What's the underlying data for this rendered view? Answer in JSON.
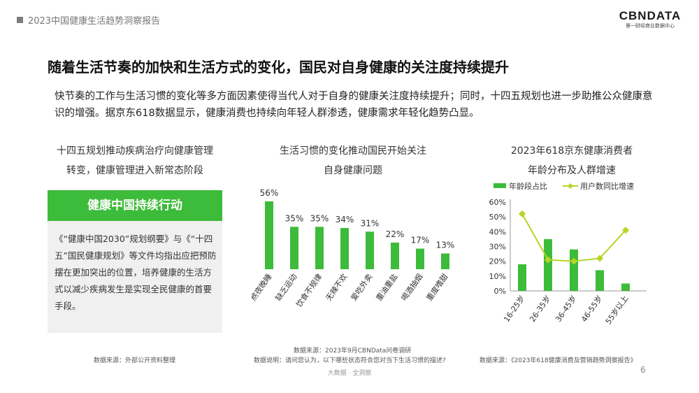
{
  "header": {
    "title": "2023中国健康生活趋势洞察报告"
  },
  "logo": {
    "main": "CBNDATA",
    "sub": "第一财经商业数据中心"
  },
  "headline": "随着生活节奏的加快和生活方式的变化，国民对自身健康的关注度持续提升",
  "intro": "快节奏的工作与生活习惯的变化等多方面因素使得当代人对于自身的健康关注度持续提升；同时，十四五规划也进一步助推公众健康意识的增强。据京东618数据显示，健康消费也持续向年轻人群渗透，健康需求年轻化趋势凸显。",
  "left_panel": {
    "title_line1": "十四五规划推动疾病治疗向健康管理",
    "title_line2": "转变，健康管理进入新常态阶段",
    "box_label": "健康中国持续行动",
    "paragraph": "《“健康中国2030”规划纲要》与《“十四五”国民健康规划》等文件均指出应把预防摆在更加突出的位置，培养健康的生活方式以减少疾病发生是实现全民健康的首要手段。",
    "source": "数据来源：外部公开资料整理"
  },
  "mid_panel": {
    "title_line1": "生活习惯的变化推动国民开始关注",
    "title_line2": "自身健康问题",
    "source": "数据来源：2023年9月CBNData问卷调研",
    "note": "数据说明：请问您认为，以下哪些状态符合您对当下生活习惯的描述?"
  },
  "right_panel": {
    "title_line1": "2023年618京东健康消费者",
    "title_line2": "年龄分布及人群增速",
    "source": "数据来源：《2023年618健康消费及营销趋势洞察报告》"
  },
  "footer": {
    "text": "大数据 · 全洞察",
    "page": "6"
  },
  "colors": {
    "green": "#3dbb3a",
    "line": "#b5d624"
  },
  "chart_data": [
    {
      "type": "bar",
      "title": "生活习惯的变化推动国民开始关注自身健康问题",
      "categories": [
        "熬夜晚睡",
        "缺乏运动",
        "饮食不规律",
        "无辣不欢",
        "爱吃外卖",
        "重油重盐",
        "喝酒抽烟",
        "重度嗜甜"
      ],
      "values": [
        56,
        35,
        35,
        34,
        31,
        22,
        17,
        13
      ],
      "value_labels": [
        "56%",
        "35%",
        "35%",
        "34%",
        "31%",
        "22%",
        "17%",
        "13%"
      ],
      "ylim": [
        0,
        60
      ],
      "grid": false
    },
    {
      "type": "bar+line",
      "title": "2023年618京东健康消费者年龄分布及人群增速",
      "categories": [
        "16-25岁",
        "26-35岁",
        "36-45岁",
        "46-55岁",
        "55岁以上"
      ],
      "series": [
        {
          "name": "年龄段占比",
          "type": "bar",
          "values": [
            18,
            35,
            28,
            14,
            5
          ]
        },
        {
          "name": "用户数同比增速",
          "type": "line",
          "values": [
            52,
            21,
            20,
            22,
            41
          ]
        }
      ],
      "yticks": [
        "0%",
        "10%",
        "20%",
        "30%",
        "40%",
        "50%",
        "60%"
      ],
      "ylim": [
        0,
        60
      ],
      "legend": "top"
    }
  ]
}
